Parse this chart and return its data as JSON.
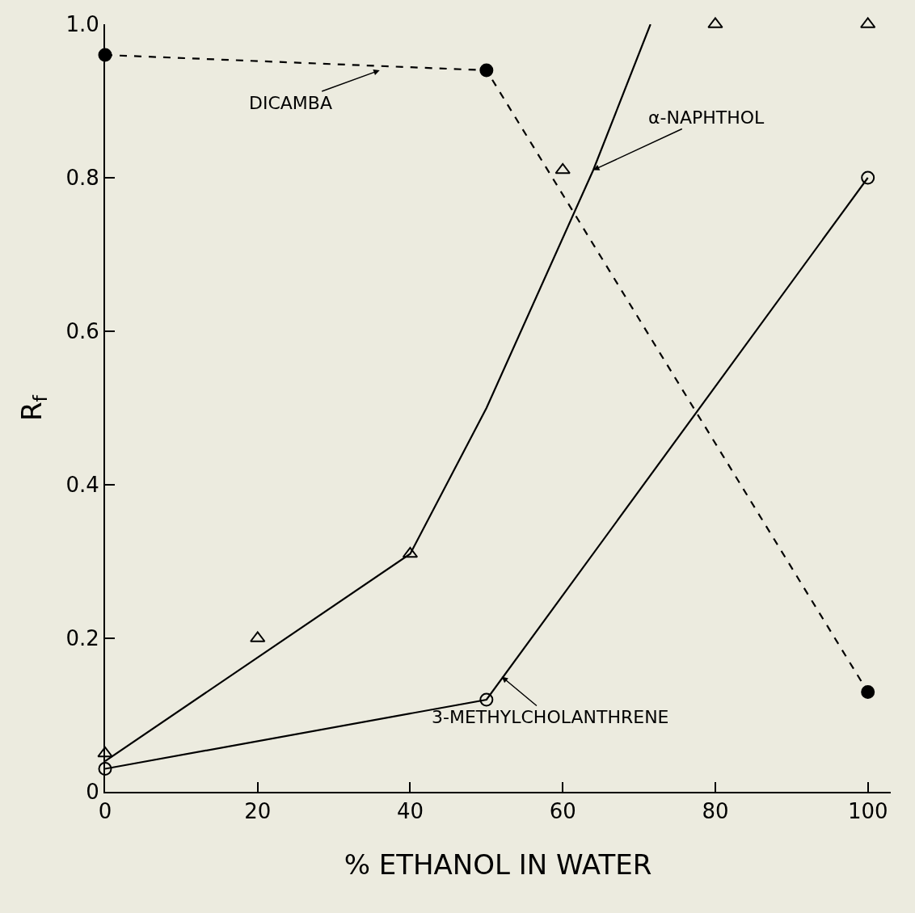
{
  "chart_data": {
    "type": "line",
    "xlabel": "% ETHANOL IN WATER",
    "ylabel": "R$_{f}$",
    "xlim": [
      0,
      103
    ],
    "ylim": [
      0,
      1.0
    ],
    "xticks": [
      0,
      20,
      40,
      60,
      80,
      100
    ],
    "yticks": [
      0,
      {
        "value": 0.2,
        "label": "0.2"
      },
      {
        "value": 0.4,
        "label": "0.4"
      },
      {
        "value": 0.6,
        "label": "0.6"
      },
      {
        "value": 0.8,
        "label": "0.8"
      },
      {
        "value": 1.0,
        "label": "1.0"
      }
    ],
    "grid": false,
    "series": [
      {
        "color": "#000000",
        "line_style": "dashed",
        "marker": "circle",
        "x": [
          0,
          50,
          100
        ],
        "values": [
          0.96,
          0.94,
          0.13
        ]
      },
      {
        "color": "#000000",
        "line_style": "solid",
        "marker": "none",
        "x": [
          0,
          40,
          50,
          64,
          71.5
        ],
        "values": [
          0.04,
          0.31,
          0.5,
          0.81,
          1.0
        ]
      },
      {
        "type": "scatter",
        "color": "#000000",
        "marker": "triangle-open",
        "x": [
          0,
          20,
          40,
          60,
          80,
          100
        ],
        "values": [
          0.05,
          0.2,
          0.31,
          0.81,
          1.0,
          1.0
        ]
      },
      {
        "color": "#000000",
        "line_style": "solid",
        "marker": "circle-open",
        "x": [
          0,
          50,
          100
        ],
        "values": [
          0.03,
          0.12,
          0.8
        ]
      }
    ],
    "annotations": [
      {
        "text": "DICAMBA",
        "x": 36,
        "y": 0.94
      },
      {
        "text": "α-NAPHTHOL",
        "x": 64,
        "y": 0.81
      },
      {
        "text": "3-METHYLCHOLANTHRENE",
        "x": 52,
        "y": 0.15
      }
    ]
  }
}
